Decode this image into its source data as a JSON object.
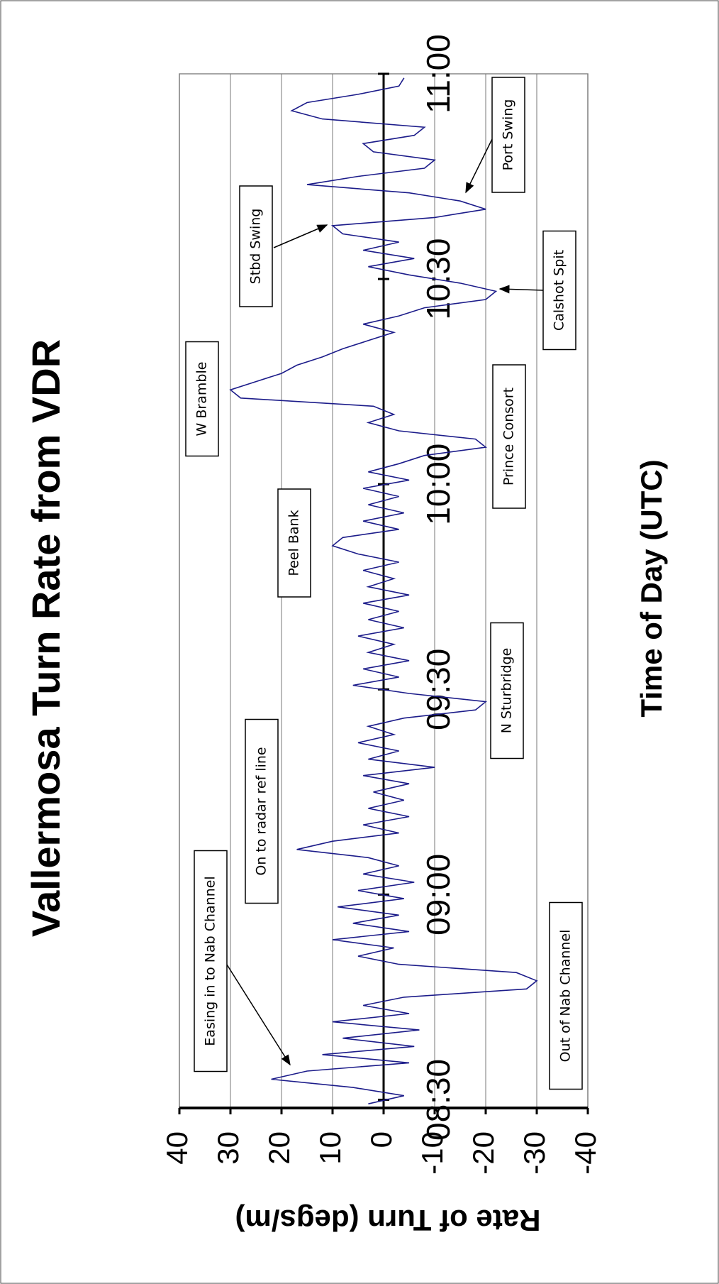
{
  "chart_data": {
    "type": "line",
    "title": "Vallermosa Turn Rate from VDR",
    "x_label": "Time of Day (UTC)",
    "y_label": "Rate of Turn (degs/m)",
    "x": [
      8.49,
      8.51,
      8.53,
      8.55,
      8.57,
      8.59,
      8.61,
      8.63,
      8.65,
      8.67,
      8.69,
      8.71,
      8.73,
      8.75,
      8.77,
      8.79,
      8.81,
      8.83,
      8.85,
      8.87,
      8.89,
      8.91,
      8.93,
      8.95,
      8.97,
      8.99,
      9.01,
      9.03,
      9.05,
      9.07,
      9.09,
      9.11,
      9.13,
      9.15,
      9.17,
      9.19,
      9.21,
      9.23,
      9.25,
      9.27,
      9.29,
      9.31,
      9.33,
      9.35,
      9.37,
      9.39,
      9.41,
      9.43,
      9.45,
      9.47,
      9.49,
      9.51,
      9.53,
      9.55,
      9.57,
      9.59,
      9.61,
      9.63,
      9.65,
      9.67,
      9.69,
      9.71,
      9.73,
      9.75,
      9.77,
      9.79,
      9.81,
      9.83,
      9.85,
      9.87,
      9.89,
      9.91,
      9.93,
      9.95,
      9.97,
      9.99,
      10.01,
      10.03,
      10.05,
      10.07,
      10.09,
      10.11,
      10.13,
      10.15,
      10.17,
      10.19,
      10.21,
      10.23,
      10.25,
      10.27,
      10.29,
      10.31,
      10.33,
      10.35,
      10.37,
      10.39,
      10.41,
      10.43,
      10.45,
      10.47,
      10.49,
      10.51,
      10.53,
      10.55,
      10.57,
      10.59,
      10.61,
      10.63,
      10.65,
      10.67,
      10.69,
      10.71,
      10.73,
      10.75,
      10.77,
      10.79,
      10.81,
      10.83,
      10.85,
      10.87,
      10.89,
      10.91,
      10.93,
      10.95,
      10.97,
      10.99
    ],
    "values": [
      3,
      -4,
      6,
      22,
      15,
      -5,
      12,
      -6,
      8,
      -7,
      10,
      -5,
      4,
      -4,
      -28,
      -30,
      -26,
      -3,
      5,
      -2,
      10,
      -5,
      6,
      -3,
      9,
      -4,
      5,
      -6,
      4,
      -3,
      3,
      17,
      10,
      -3,
      4,
      -5,
      3,
      -4,
      2,
      -5,
      4,
      -10,
      3,
      -3,
      5,
      -2,
      3,
      -4,
      -18,
      -20,
      -5,
      6,
      -3,
      4,
      -5,
      3,
      -2,
      5,
      -4,
      3,
      -3,
      4,
      -5,
      3,
      -2,
      4,
      -3,
      5,
      10,
      8,
      -3,
      4,
      -4,
      3,
      -3,
      4,
      -5,
      3,
      -3,
      -8,
      -20,
      -18,
      -3,
      3,
      -2,
      2,
      28,
      30,
      25,
      20,
      17,
      12,
      8,
      3,
      -2,
      4,
      -3,
      -8,
      -20,
      -22,
      -15,
      -5,
      3,
      -6,
      4,
      -3,
      8,
      10,
      -10,
      -20,
      -15,
      -5,
      15,
      5,
      -8,
      -10,
      2,
      4,
      -6,
      -8,
      12,
      18,
      15,
      5,
      -3,
      -4
    ],
    "color": "#1c1c8a",
    "xlim": [
      8.48,
      11.0
    ],
    "ylim": [
      -40,
      40
    ],
    "yticks": [
      -40,
      -30,
      -20,
      -10,
      0,
      10,
      20,
      30,
      40
    ],
    "xticks": [
      {
        "value": 8.5,
        "label": "08:30"
      },
      {
        "value": 9.0,
        "label": "09:00"
      },
      {
        "value": 9.5,
        "label": "09:30"
      },
      {
        "value": 10.0,
        "label": "10:00"
      },
      {
        "value": 10.5,
        "label": "10:30"
      },
      {
        "value": 11.0,
        "label": "11:00"
      }
    ],
    "grid": true,
    "annotations": [
      "Easing in to Nab Channel",
      "On to radar ref line",
      "Peel Bank",
      "W Bramble",
      "Stbd Swing",
      "Port Swing",
      "Calshot Spit",
      "Prince Consort",
      "N Sturbridge",
      "Out of Nab Channel"
    ]
  }
}
